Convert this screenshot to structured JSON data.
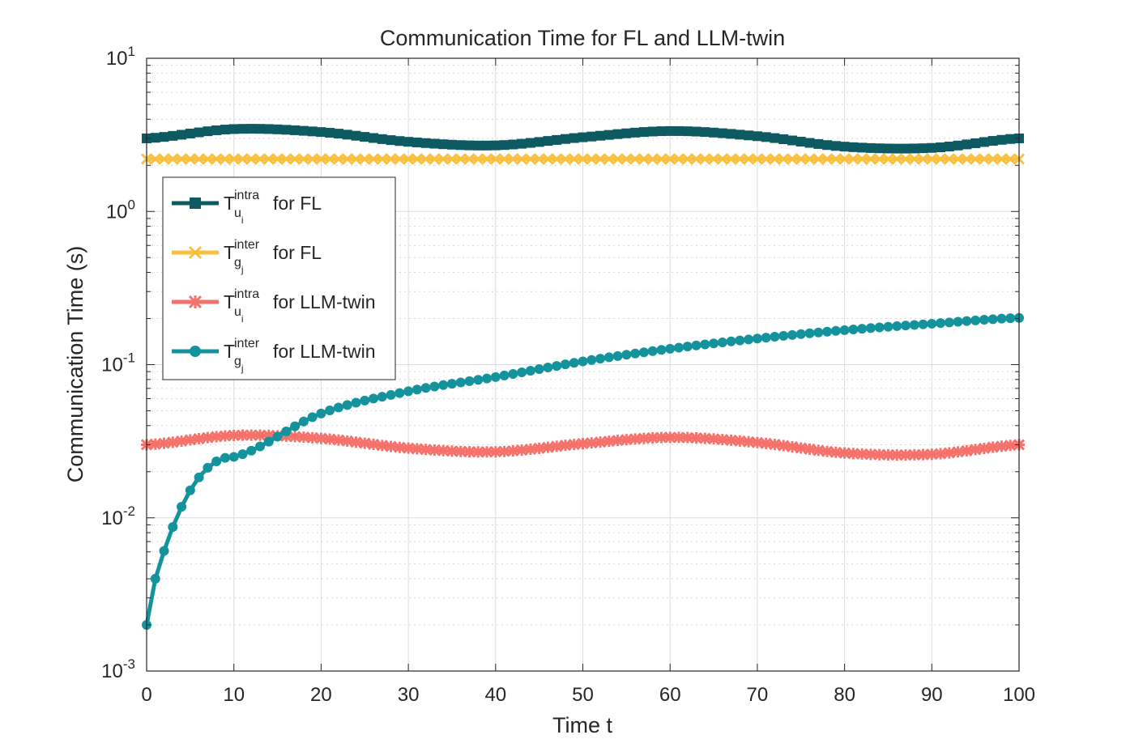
{
  "chart_data": {
    "type": "line",
    "title": "Communication Time for FL and LLM-twin",
    "xlabel": "Time t",
    "ylabel": "Communication Time (s)",
    "xlim": [
      0,
      100
    ],
    "ylim": [
      0.001,
      10
    ],
    "yscale": "log",
    "grid": true,
    "legend_position": "upper-left",
    "x_ticks": [
      0,
      10,
      20,
      30,
      40,
      50,
      60,
      70,
      80,
      90,
      100
    ],
    "y_ticks": [
      {
        "value": 0.001,
        "base": "10",
        "exp": "-3"
      },
      {
        "value": 0.01,
        "base": "10",
        "exp": "-2"
      },
      {
        "value": 0.1,
        "base": "10",
        "exp": "-1"
      },
      {
        "value": 1,
        "base": "10",
        "exp": "0"
      },
      {
        "value": 10,
        "base": "10",
        "exp": "1"
      }
    ],
    "x": [
      0,
      10,
      20,
      30,
      40,
      50,
      60,
      70,
      80,
      90,
      100
    ],
    "series": [
      {
        "name": "T_{u_i}^{intra} for FL",
        "legend": {
          "base": "T",
          "sup": "intra",
          "sub": "u",
          "subsub": "i",
          "suffix": "for FL"
        },
        "color": "#0e5a63",
        "marker": "square",
        "values": [
          3.0,
          3.45,
          3.3,
          2.85,
          2.7,
          3.05,
          3.35,
          3.1,
          2.65,
          2.6,
          3.0
        ]
      },
      {
        "name": "T_{g_j}^{inter} for FL",
        "legend": {
          "base": "T",
          "sup": "inter",
          "sub": "g",
          "subsub": "j",
          "suffix": "for FL"
        },
        "color": "#f8c142",
        "marker": "x",
        "values": [
          2.2,
          2.2,
          2.2,
          2.2,
          2.2,
          2.2,
          2.2,
          2.2,
          2.2,
          2.2,
          2.2
        ]
      },
      {
        "name": "T_{u_i}^{intra} for LLM-twin",
        "legend": {
          "base": "T",
          "sup": "intra",
          "sub": "u",
          "subsub": "i",
          "suffix": "for LLM-twin"
        },
        "color": "#f4726b",
        "marker": "star",
        "values": [
          0.03,
          0.0345,
          0.033,
          0.0285,
          0.027,
          0.0305,
          0.0335,
          0.031,
          0.0265,
          0.026,
          0.03
        ]
      },
      {
        "name": "T_{g_j}^{inter} for LLM-twin",
        "legend": {
          "base": "T",
          "sup": "inter",
          "sub": "g",
          "subsub": "j",
          "suffix": "for LLM-twin"
        },
        "color": "#14939c",
        "marker": "circle",
        "values": [
          0.002,
          0.025,
          0.048,
          0.067,
          0.083,
          0.105,
          0.127,
          0.148,
          0.168,
          0.185,
          0.202
        ]
      }
    ]
  }
}
